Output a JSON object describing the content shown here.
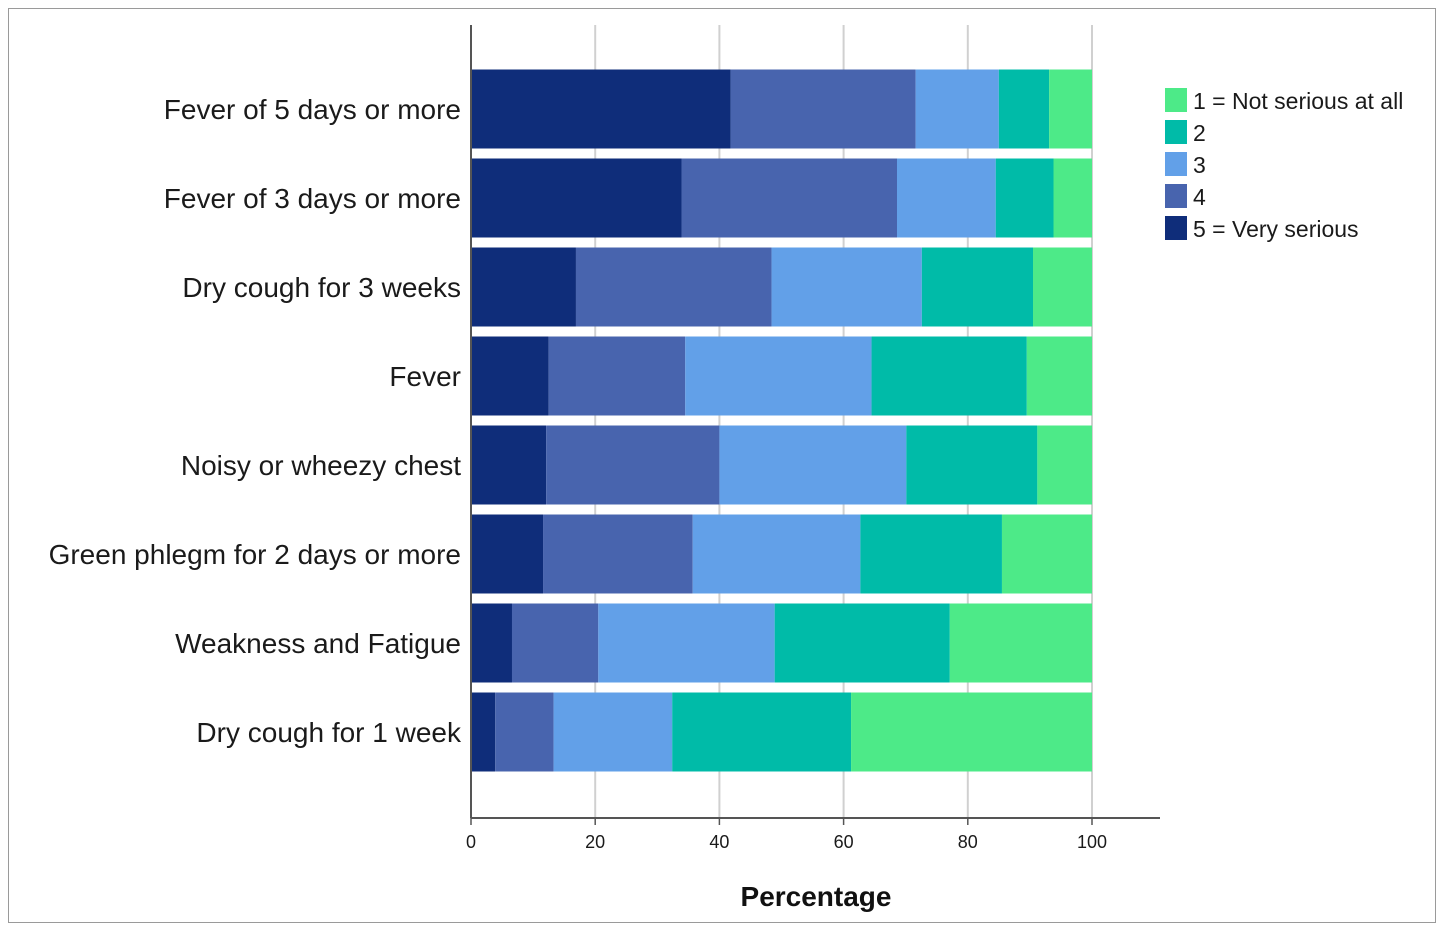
{
  "chart_data": {
    "type": "bar",
    "orientation": "horizontal",
    "stacked": true,
    "xlabel": "Percentage",
    "ylabel": "",
    "xlim": [
      0,
      100
    ],
    "x_ticks": [
      "0",
      "20",
      "40",
      "60",
      "80",
      "100"
    ],
    "grid": true,
    "legend_position": "right",
    "categories": [
      "Fever of 5 days or more",
      "Fever of 3 days or more",
      "Dry cough for 3 weeks",
      "Fever",
      "Noisy or wheezy chest",
      "Green phlegm for 2 days or more",
      "Weakness and Fatigue",
      "Dry cough for 1 week"
    ],
    "series": [
      {
        "name": "5 = Very serious",
        "color": "#0f2d7a",
        "values": [
          41.8,
          33.9,
          16.9,
          12.5,
          12.1,
          11.6,
          6.6,
          3.9
        ]
      },
      {
        "name": "4",
        "color": "#4864ae",
        "values": [
          29.8,
          34.7,
          31.5,
          22.0,
          27.9,
          24.1,
          13.9,
          9.4
        ]
      },
      {
        "name": "3",
        "color": "#62a0e8",
        "values": [
          13.4,
          15.9,
          24.2,
          30.0,
          30.1,
          27.0,
          28.4,
          19.1
        ]
      },
      {
        "name": "2",
        "color": "#00bba8",
        "values": [
          8.1,
          9.3,
          17.9,
          25.0,
          21.1,
          22.8,
          28.2,
          28.8
        ]
      },
      {
        "name": "1 = Not serious at all",
        "color": "#4dea88",
        "values": [
          6.9,
          6.2,
          9.5,
          10.5,
          8.8,
          14.5,
          22.9,
          38.8
        ]
      }
    ],
    "legend": [
      {
        "name": "1 = Not serious at all",
        "color": "#4dea88"
      },
      {
        "name": "2",
        "color": "#00bba8"
      },
      {
        "name": "3",
        "color": "#62a0e8"
      },
      {
        "name": "4",
        "color": "#4864ae"
      },
      {
        "name": "5 = Very serious",
        "color": "#0f2d7a"
      }
    ]
  }
}
